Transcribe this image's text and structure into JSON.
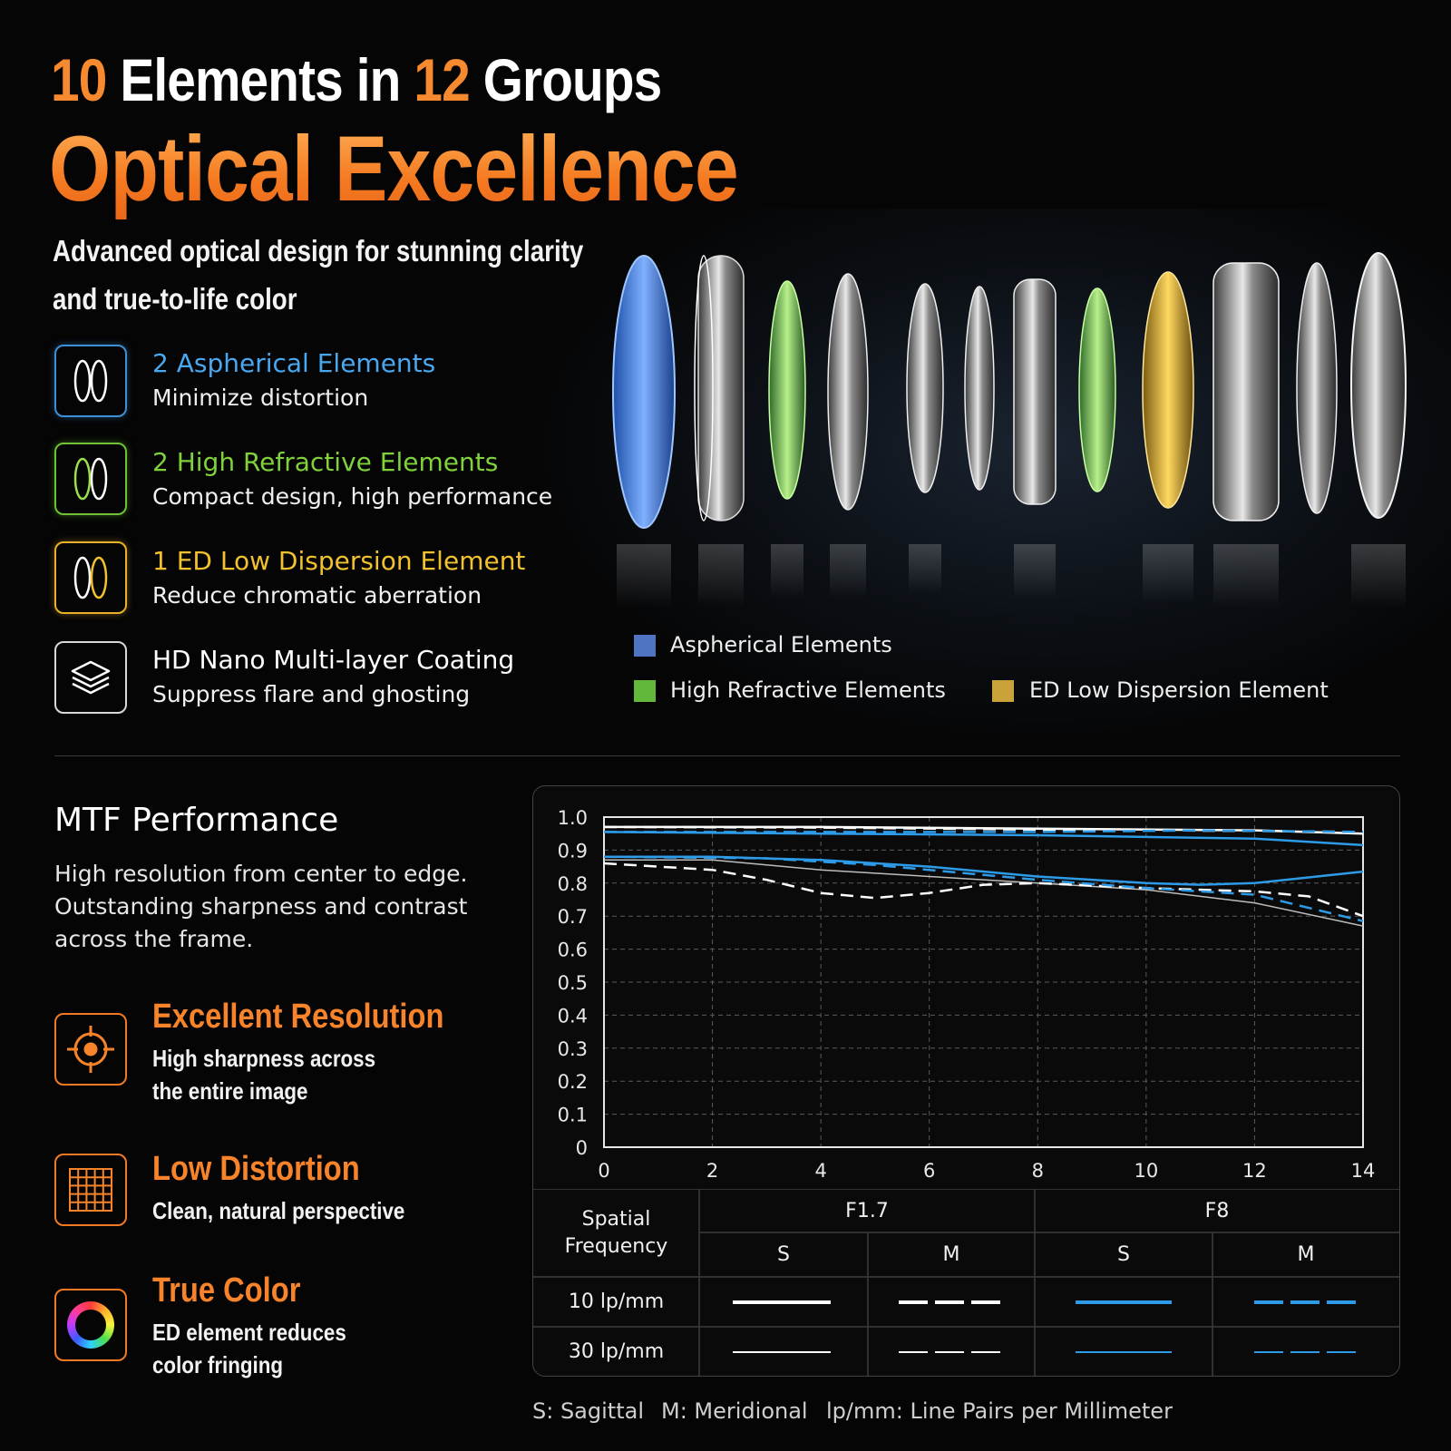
{
  "header": {
    "num1": "10",
    "word1": " Elements in ",
    "num2": "12",
    "word2": " Groups",
    "title": "Optical Excellence",
    "subtitle_line1": "Advanced optical design for stunning clarity",
    "subtitle_line2": "and true-to-life color"
  },
  "features": [
    {
      "title": "2 Aspherical Elements",
      "desc": "Minimize distortion",
      "icon": "aspherical-lens-icon",
      "color": "#4aa8f0"
    },
    {
      "title": "2 High Refractive Elements",
      "desc": "Compact design, high performance",
      "icon": "refractive-lens-icon",
      "color": "#7fd23a"
    },
    {
      "title": "1 ED Low Dispersion Element",
      "desc": "Reduce chromatic aberration",
      "icon": "ed-lens-icon",
      "color": "#f2c12e"
    },
    {
      "title": "HD Nano Multi-layer Coating",
      "desc": "Suppress flare and ghosting",
      "icon": "layers-icon",
      "color": "#ffffff"
    }
  ],
  "legend": [
    {
      "label": "Aspherical Elements",
      "color": "#4f74c4"
    },
    {
      "label": "High Refractive Elements",
      "color": "#62b83a"
    },
    {
      "label": "ED Low Dispersion Element",
      "color": "#caa23a"
    }
  ],
  "mtf": {
    "title": "MTF Performance",
    "desc_lines": [
      "High resolution from center to edge.",
      "Outstanding sharpness and contrast",
      "across the frame."
    ]
  },
  "benefits": [
    {
      "title": "Excellent Resolution",
      "desc_lines": [
        "High sharpness across",
        "the entire image"
      ],
      "icon": "crosshair-icon"
    },
    {
      "title": "Low Distortion",
      "desc_lines": [
        "Clean, natural perspective"
      ],
      "icon": "grid-icon"
    },
    {
      "title": "True Color",
      "desc_lines": [
        "ED element reduces",
        "color fringing"
      ],
      "icon": "color-ring-icon"
    }
  ],
  "chart_data": {
    "type": "line",
    "xlim": [
      0,
      14
    ],
    "ylim": [
      0,
      1.0
    ],
    "x_ticks": [
      "0",
      "2",
      "4",
      "6",
      "8",
      "10",
      "12",
      "14"
    ],
    "y_ticks": [
      "0",
      "0.1",
      "0.2",
      "0.3",
      "0.4",
      "0.5",
      "0.6",
      "0.7",
      "0.8",
      "0.9",
      "1.0"
    ],
    "grid": true,
    "series": [
      {
        "aperture": "F1.7",
        "type": "S",
        "freq": "10 lp/mm",
        "color": "#ffffff",
        "dashed": false,
        "width": 2.5,
        "points": [
          [
            0,
            0.97
          ],
          [
            4,
            0.97
          ],
          [
            8,
            0.965
          ],
          [
            12,
            0.96
          ],
          [
            14,
            0.95
          ]
        ]
      },
      {
        "aperture": "F1.7",
        "type": "M",
        "freq": "10 lp/mm",
        "color": "#ffffff",
        "dashed": true,
        "width": 2.5,
        "points": [
          [
            0,
            0.97
          ],
          [
            4,
            0.968
          ],
          [
            8,
            0.962
          ],
          [
            12,
            0.958
          ],
          [
            14,
            0.955
          ]
        ]
      },
      {
        "aperture": "F8",
        "type": "S",
        "freq": "10 lp/mm",
        "color": "#2d9be8",
        "dashed": false,
        "width": 2.5,
        "points": [
          [
            0,
            0.955
          ],
          [
            4,
            0.95
          ],
          [
            8,
            0.945
          ],
          [
            12,
            0.935
          ],
          [
            14,
            0.915
          ]
        ]
      },
      {
        "aperture": "F8",
        "type": "M",
        "freq": "10 lp/mm",
        "color": "#2d9be8",
        "dashed": true,
        "width": 2.5,
        "points": [
          [
            0,
            0.955
          ],
          [
            4,
            0.955
          ],
          [
            8,
            0.955
          ],
          [
            11,
            0.96
          ],
          [
            14,
            0.955
          ]
        ]
      },
      {
        "aperture": "F1.7",
        "type": "S",
        "freq": "30 lp/mm",
        "color": "#bdbdbd",
        "dashed": false,
        "width": 1.5,
        "points": [
          [
            0,
            0.87
          ],
          [
            2,
            0.87
          ],
          [
            4,
            0.84
          ],
          [
            6,
            0.82
          ],
          [
            8,
            0.8
          ],
          [
            10,
            0.78
          ],
          [
            12,
            0.74
          ],
          [
            14,
            0.67
          ]
        ]
      },
      {
        "aperture": "F1.7",
        "type": "M",
        "freq": "30 lp/mm",
        "color": "#ffffff",
        "dashed": true,
        "width": 2.5,
        "points": [
          [
            0,
            0.86
          ],
          [
            2,
            0.84
          ],
          [
            3,
            0.81
          ],
          [
            4,
            0.77
          ],
          [
            5,
            0.755
          ],
          [
            6,
            0.77
          ],
          [
            7,
            0.795
          ],
          [
            8,
            0.8
          ],
          [
            10,
            0.785
          ],
          [
            12,
            0.775
          ],
          [
            13,
            0.76
          ],
          [
            14,
            0.7
          ]
        ]
      },
      {
        "aperture": "F8",
        "type": "S",
        "freq": "30 lp/mm",
        "color": "#2d9be8",
        "dashed": false,
        "width": 2.5,
        "points": [
          [
            0,
            0.88
          ],
          [
            2,
            0.88
          ],
          [
            4,
            0.87
          ],
          [
            6,
            0.85
          ],
          [
            8,
            0.82
          ],
          [
            10,
            0.8
          ],
          [
            11,
            0.795
          ],
          [
            12,
            0.8
          ],
          [
            14,
            0.835
          ]
        ]
      },
      {
        "aperture": "F8",
        "type": "M",
        "freq": "30 lp/mm",
        "color": "#2d9be8",
        "dashed": true,
        "width": 2.5,
        "points": [
          [
            0,
            0.88
          ],
          [
            3,
            0.875
          ],
          [
            5,
            0.855
          ],
          [
            8,
            0.81
          ],
          [
            10,
            0.785
          ],
          [
            12,
            0.765
          ],
          [
            14,
            0.685
          ]
        ]
      }
    ]
  },
  "table": {
    "col0_header": [
      "Spatial",
      "Frequency"
    ],
    "f17": "F1.7",
    "f8": "F8",
    "s": "S",
    "m": "M",
    "row1": "10 lp/mm",
    "row2": "30 lp/mm"
  },
  "footnotes": [
    "S: Sagittal",
    "M: Meridional",
    "lp/mm: Line Pairs per Millimeter"
  ]
}
